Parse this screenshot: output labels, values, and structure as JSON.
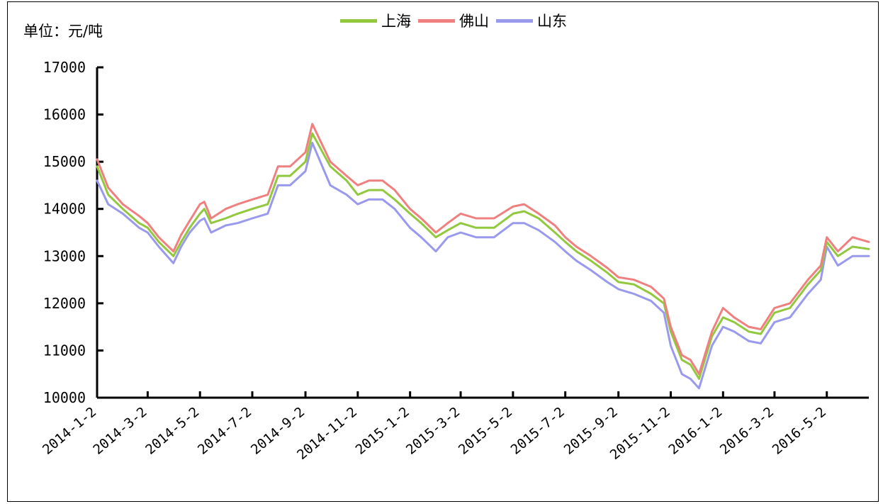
{
  "chart_data": {
    "type": "line",
    "unit_label": "单位：元/吨",
    "ylim": [
      10000,
      17000
    ],
    "y_ticks": [
      "10000",
      "11000",
      "12000",
      "13000",
      "14000",
      "15000",
      "16000",
      "17000"
    ],
    "x_ticks": [
      "2014-1-2",
      "2014-3-2",
      "2014-5-2",
      "2014-7-2",
      "2014-9-2",
      "2014-11-2",
      "2015-1-2",
      "2015-3-2",
      "2015-5-2",
      "2015-7-2",
      "2015-9-2",
      "2015-11-2",
      "2016-1-2",
      "2016-3-2",
      "2016-5-2"
    ],
    "x_range": [
      "2014-01-02",
      "2016-06-20"
    ],
    "legend_position": "top-center",
    "grid": false,
    "x": [
      "2014-01-02",
      "2014-01-15",
      "2014-02-01",
      "2014-02-20",
      "2014-03-02",
      "2014-03-15",
      "2014-04-01",
      "2014-04-10",
      "2014-04-20",
      "2014-05-02",
      "2014-05-07",
      "2014-05-15",
      "2014-06-01",
      "2014-06-15",
      "2014-07-02",
      "2014-07-20",
      "2014-08-01",
      "2014-08-15",
      "2014-09-02",
      "2014-09-10",
      "2014-10-01",
      "2014-10-20",
      "2014-11-02",
      "2014-11-15",
      "2014-12-01",
      "2014-12-15",
      "2015-01-02",
      "2015-01-15",
      "2015-02-01",
      "2015-02-15",
      "2015-03-02",
      "2015-03-20",
      "2015-04-10",
      "2015-05-02",
      "2015-05-15",
      "2015-06-01",
      "2015-06-20",
      "2015-07-02",
      "2015-07-15",
      "2015-08-01",
      "2015-08-20",
      "2015-09-02",
      "2015-09-20",
      "2015-10-10",
      "2015-10-25",
      "2015-11-02",
      "2015-11-15",
      "2015-11-25",
      "2015-12-05",
      "2015-12-20",
      "2016-01-02",
      "2016-01-15",
      "2016-02-01",
      "2016-02-15",
      "2016-03-02",
      "2016-03-20",
      "2016-04-10",
      "2016-04-25",
      "2016-05-02",
      "2016-05-15",
      "2016-06-01",
      "2016-06-20"
    ],
    "series": [
      {
        "name": "上海",
        "color": "#92c83e",
        "values": [
          14900,
          14300,
          14000,
          13700,
          13600,
          13300,
          13000,
          13300,
          13600,
          13900,
          14000,
          13700,
          13800,
          13900,
          14000,
          14100,
          14700,
          14700,
          15000,
          15600,
          14900,
          14600,
          14300,
          14400,
          14400,
          14200,
          13900,
          13700,
          13400,
          13550,
          13700,
          13600,
          13600,
          13900,
          13950,
          13800,
          13500,
          13300,
          13100,
          12900,
          12650,
          12450,
          12400,
          12200,
          12000,
          11400,
          10800,
          10700,
          10400,
          11300,
          11700,
          11600,
          11400,
          11350,
          11800,
          11900,
          12400,
          12700,
          13300,
          13000,
          13200,
          13150
        ]
      },
      {
        "name": "佛山",
        "color": "#f08080",
        "values": [
          15050,
          14450,
          14100,
          13850,
          13700,
          13400,
          13100,
          13450,
          13750,
          14100,
          14150,
          13800,
          14000,
          14100,
          14200,
          14300,
          14900,
          14900,
          15200,
          15800,
          15000,
          14700,
          14500,
          14600,
          14600,
          14400,
          14000,
          13800,
          13500,
          13700,
          13900,
          13800,
          13800,
          14050,
          14100,
          13900,
          13650,
          13400,
          13200,
          13000,
          12750,
          12550,
          12500,
          12350,
          12100,
          11500,
          10900,
          10800,
          10500,
          11400,
          11900,
          11700,
          11500,
          11450,
          11900,
          12000,
          12500,
          12800,
          13400,
          13100,
          13400,
          13300
        ]
      },
      {
        "name": "山东",
        "color": "#9999ee",
        "values": [
          14600,
          14100,
          13900,
          13600,
          13500,
          13200,
          12850,
          13200,
          13500,
          13750,
          13800,
          13500,
          13650,
          13700,
          13800,
          13900,
          14500,
          14500,
          14800,
          15400,
          14500,
          14300,
          14100,
          14200,
          14200,
          14000,
          13600,
          13400,
          13100,
          13400,
          13500,
          13400,
          13400,
          13700,
          13700,
          13550,
          13300,
          13100,
          12900,
          12700,
          12450,
          12300,
          12200,
          12050,
          11800,
          11100,
          10500,
          10400,
          10200,
          11100,
          11500,
          11400,
          11200,
          11150,
          11600,
          11700,
          12200,
          12500,
          13200,
          12800,
          13000,
          13000
        ]
      }
    ]
  }
}
